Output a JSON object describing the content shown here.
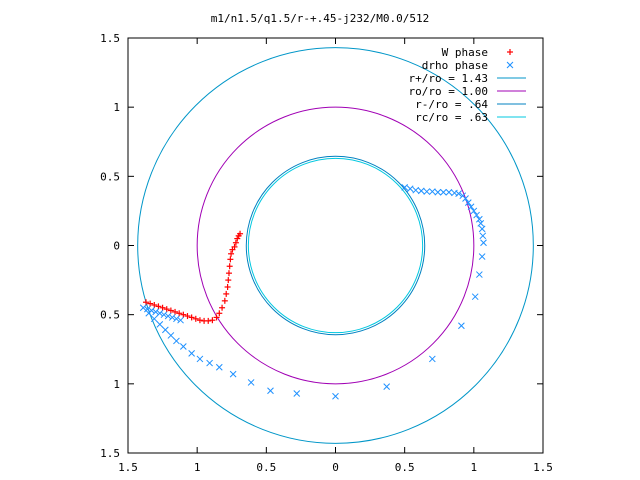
{
  "chart_data": {
    "type": "scatter",
    "title": "m1/n1.5/q1.5/r-+.45-j232/M0.0/512",
    "xlim": [
      -1.5,
      1.5
    ],
    "ylim": [
      -1.5,
      1.5
    ],
    "x_tick_labels": [
      "1.5",
      "1",
      "0.5",
      "0",
      "0.5",
      "1",
      "1.5"
    ],
    "y_tick_labels": [
      "1.5",
      "1",
      "0.5",
      "0",
      "0.5",
      "1",
      "1.5"
    ],
    "grid": false,
    "legend_position": "top-right",
    "legend": [
      {
        "label": "W phase",
        "marker": "plus",
        "color": "#ff0000"
      },
      {
        "label": "drho phase",
        "marker": "x",
        "color": "#1e90ff"
      },
      {
        "label": "r+/ro = 1.43",
        "line": true,
        "color": "#0096c8"
      },
      {
        "label": "ro/ro = 1.00",
        "line": true,
        "color": "#a000b4"
      },
      {
        "label": "r-/ro = .64",
        "line": true,
        "color": "#0080c0"
      },
      {
        "label": "rc/ro = .63",
        "line": true,
        "color": "#00c8e0"
      }
    ],
    "circles": [
      {
        "name": "r+/ro = 1.43",
        "radius": 1.43,
        "color": "#0096c8"
      },
      {
        "name": "ro/ro = 1.00",
        "radius": 1.0,
        "color": "#a000b4"
      },
      {
        "name": "r-/ro = .64",
        "radius": 0.645,
        "color": "#0080c0"
      },
      {
        "name": "rc/ro = .63",
        "radius": 0.63,
        "color": "#00c8e0"
      }
    ],
    "series": [
      {
        "name": "W phase",
        "marker": "plus",
        "color": "#ff0000",
        "points": [
          [
            -1.37,
            -0.41
          ],
          [
            -1.34,
            -0.42
          ],
          [
            -1.31,
            -0.43
          ],
          [
            -1.28,
            -0.44
          ],
          [
            -1.25,
            -0.45
          ],
          [
            -1.22,
            -0.46
          ],
          [
            -1.19,
            -0.47
          ],
          [
            -1.16,
            -0.48
          ],
          [
            -1.13,
            -0.49
          ],
          [
            -1.1,
            -0.5
          ],
          [
            -1.07,
            -0.51
          ],
          [
            -1.04,
            -0.52
          ],
          [
            -1.01,
            -0.53
          ],
          [
            -0.98,
            -0.54
          ],
          [
            -0.95,
            -0.545
          ],
          [
            -0.92,
            -0.545
          ],
          [
            -0.89,
            -0.54
          ],
          [
            -0.86,
            -0.52
          ],
          [
            -0.84,
            -0.49
          ],
          [
            -0.82,
            -0.45
          ],
          [
            -0.8,
            -0.4
          ],
          [
            -0.79,
            -0.35
          ],
          [
            -0.78,
            -0.3
          ],
          [
            -0.775,
            -0.25
          ],
          [
            -0.77,
            -0.2
          ],
          [
            -0.765,
            -0.15
          ],
          [
            -0.76,
            -0.1
          ],
          [
            -0.755,
            -0.06
          ],
          [
            -0.745,
            -0.03
          ],
          [
            -0.73,
            -0.01
          ],
          [
            -0.72,
            0.02
          ],
          [
            -0.71,
            0.05
          ],
          [
            -0.7,
            0.07
          ],
          [
            -0.69,
            0.085
          ]
        ]
      },
      {
        "name": "drho phase",
        "marker": "x",
        "color": "#1e90ff",
        "points": [
          [
            -1.39,
            -0.45
          ],
          [
            -1.36,
            -0.46
          ],
          [
            -1.33,
            -0.47
          ],
          [
            -1.3,
            -0.48
          ],
          [
            -1.27,
            -0.49
          ],
          [
            -1.24,
            -0.5
          ],
          [
            -1.21,
            -0.51
          ],
          [
            -1.18,
            -0.52
          ],
          [
            -1.15,
            -0.53
          ],
          [
            -1.12,
            -0.54
          ],
          [
            -1.35,
            -0.49
          ],
          [
            -1.31,
            -0.53
          ],
          [
            -1.27,
            -0.57
          ],
          [
            -1.23,
            -0.61
          ],
          [
            -1.19,
            -0.65
          ],
          [
            -1.15,
            -0.69
          ],
          [
            -1.1,
            -0.73
          ],
          [
            -1.04,
            -0.78
          ],
          [
            -0.98,
            -0.82
          ],
          [
            -0.91,
            -0.85
          ],
          [
            -0.84,
            -0.88
          ],
          [
            -0.74,
            -0.93
          ],
          [
            -0.61,
            -0.99
          ],
          [
            -0.47,
            -1.05
          ],
          [
            -0.28,
            -1.07
          ],
          [
            0.0,
            -1.09
          ],
          [
            0.37,
            -1.02
          ],
          [
            0.7,
            -0.82
          ],
          [
            0.91,
            -0.58
          ],
          [
            1.01,
            -0.37
          ],
          [
            1.04,
            -0.21
          ],
          [
            1.06,
            -0.08
          ],
          [
            1.07,
            0.02
          ],
          [
            1.065,
            0.07
          ],
          [
            1.06,
            0.12
          ],
          [
            1.05,
            0.16
          ],
          [
            1.04,
            0.19
          ],
          [
            1.02,
            0.22
          ],
          [
            1.0,
            0.25
          ],
          [
            0.98,
            0.28
          ],
          [
            0.96,
            0.31
          ],
          [
            0.94,
            0.34
          ],
          [
            0.92,
            0.36
          ],
          [
            0.89,
            0.375
          ],
          [
            0.86,
            0.38
          ],
          [
            0.82,
            0.385
          ],
          [
            0.78,
            0.385
          ],
          [
            0.74,
            0.385
          ],
          [
            0.7,
            0.39
          ],
          [
            0.66,
            0.39
          ],
          [
            0.62,
            0.395
          ],
          [
            0.58,
            0.4
          ],
          [
            0.54,
            0.41
          ],
          [
            0.5,
            0.42
          ]
        ]
      }
    ]
  }
}
